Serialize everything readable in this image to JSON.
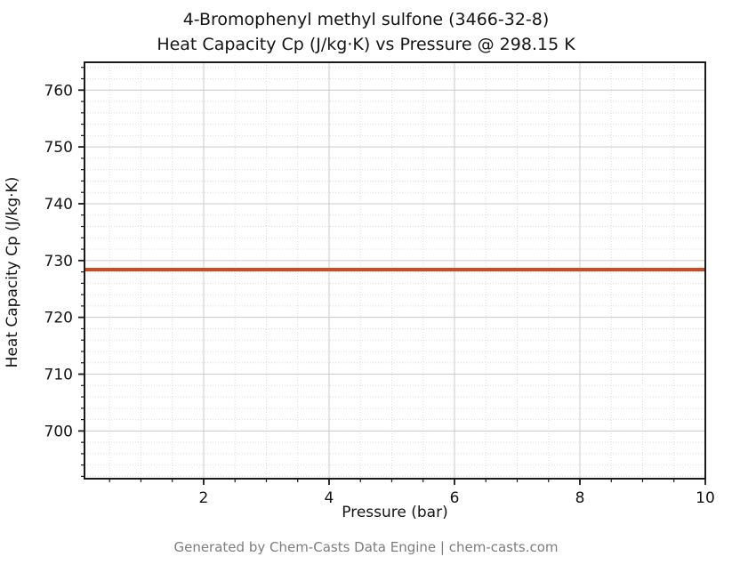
{
  "chart_data": {
    "type": "line",
    "title_line1": "4-Bromophenyl methyl sulfone (3466-32-8)",
    "title_line2": "Heat Capacity Cp (J/kg·K) vs Pressure @ 298.15 K",
    "xlabel": "Pressure (bar)",
    "ylabel": "Heat Capacity Cp (J/kg·K)",
    "footer": "Generated by Chem-Casts Data Engine | chem-casts.com",
    "xlim": [
      0.1,
      10
    ],
    "ylim": [
      691.6,
      764.9
    ],
    "xticks": [
      2,
      4,
      6,
      8,
      10
    ],
    "yticks": [
      700,
      710,
      720,
      730,
      740,
      750,
      760
    ],
    "x_minor_step": 0.5,
    "y_minor_step": 2,
    "grid": true,
    "legend": "none",
    "series": [
      {
        "name": "Heat Capacity Cp",
        "color": "#cf4a21",
        "x": [
          0.1,
          10.0
        ],
        "y": [
          728.4,
          728.4
        ]
      }
    ],
    "line_width": 4,
    "colors": {
      "frame": "#1a1a1a",
      "major_grid": "#cccccc",
      "minor_grid": "#dedede",
      "tick_label": "#141414"
    }
  }
}
